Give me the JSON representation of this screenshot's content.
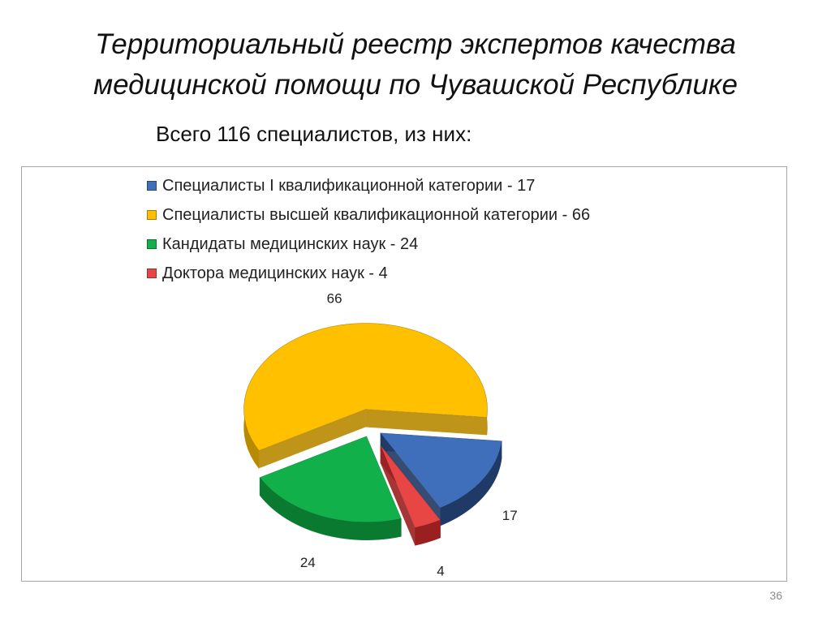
{
  "slide": {
    "title_line1": "Территориальный реестр экспертов качества",
    "title_line2": "медицинской помощи по Чувашской Республике",
    "subtitle": "Всего 116 специалистов, из них:",
    "page_number": "36"
  },
  "chart_data": {
    "type": "pie",
    "title": "",
    "style": "3d-exploded",
    "legend_position": "top",
    "slices": [
      {
        "name": "Специалисты I квалификационной категории - 17",
        "value": 17,
        "label": "17",
        "color": "#3f6fba",
        "side_color": "#1f3a66"
      },
      {
        "name": "Специалисты высшей квалификационной категории - 66",
        "value": 66,
        "label": "66",
        "color": "#ffc000",
        "side_color": "#b88a00"
      },
      {
        "name": "Кандидаты медицинских наук - 24",
        "value": 24,
        "label": "24",
        "color": "#12b04a",
        "side_color": "#0a7a31"
      },
      {
        "name": "Доктора медицинских наук - 4",
        "value": 4,
        "label": "4",
        "color": "#e84545",
        "side_color": "#9a2020"
      }
    ]
  }
}
